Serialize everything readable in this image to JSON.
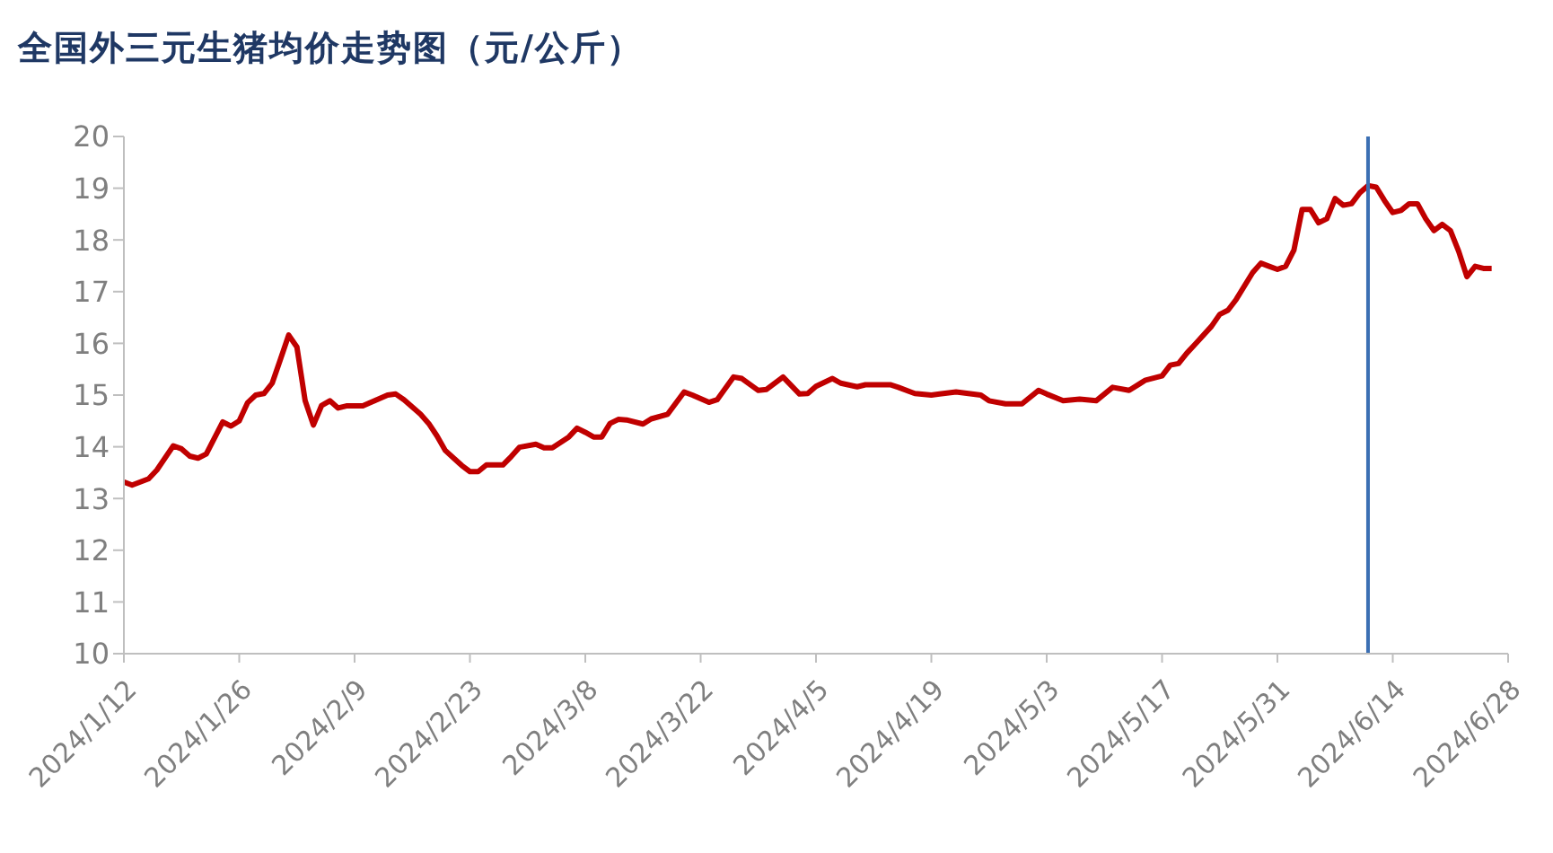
{
  "chart_data": {
    "type": "line",
    "title": "全国外三元生猪均价走势图（元/公斤）",
    "x": [
      "2024-01-12",
      "2024-01-13",
      "2024-01-15",
      "2024-01-16",
      "2024-01-18",
      "2024-01-19",
      "2024-01-20",
      "2024-01-21",
      "2024-01-22",
      "2024-01-24",
      "2024-01-25",
      "2024-01-26",
      "2024-01-27",
      "2024-01-28",
      "2024-01-29",
      "2024-01-30",
      "2024-01-31",
      "2024-02-01",
      "2024-02-02",
      "2024-02-03",
      "2024-02-04",
      "2024-02-05",
      "2024-02-06",
      "2024-02-07",
      "2024-02-08",
      "2024-02-10",
      "2024-02-11",
      "2024-02-13",
      "2024-02-14",
      "2024-02-15",
      "2024-02-17",
      "2024-02-18",
      "2024-02-19",
      "2024-02-20",
      "2024-02-22",
      "2024-02-23",
      "2024-02-24",
      "2024-02-25",
      "2024-02-27",
      "2024-02-28",
      "2024-02-29",
      "2024-03-02",
      "2024-03-03",
      "2024-03-04",
      "2024-03-06",
      "2024-03-07",
      "2024-03-08",
      "2024-03-09",
      "2024-03-10",
      "2024-03-11",
      "2024-03-12",
      "2024-03-13",
      "2024-03-15",
      "2024-03-16",
      "2024-03-18",
      "2024-03-20",
      "2024-03-21",
      "2024-03-23",
      "2024-03-24",
      "2024-03-26",
      "2024-03-27",
      "2024-03-29",
      "2024-03-30",
      "2024-04-01",
      "2024-04-03",
      "2024-04-04",
      "2024-04-05",
      "2024-04-07",
      "2024-04-08",
      "2024-04-10",
      "2024-04-11",
      "2024-04-14",
      "2024-04-15",
      "2024-04-17",
      "2024-04-19",
      "2024-04-20",
      "2024-04-22",
      "2024-04-25",
      "2024-04-26",
      "2024-04-28",
      "2024-04-30",
      "2024-05-02",
      "2024-05-03",
      "2024-05-05",
      "2024-05-07",
      "2024-05-09",
      "2024-05-11",
      "2024-05-13",
      "2024-05-15",
      "2024-05-17",
      "2024-05-18",
      "2024-05-19",
      "2024-05-20",
      "2024-05-21",
      "2024-05-23",
      "2024-05-24",
      "2024-05-25",
      "2024-05-26",
      "2024-05-28",
      "2024-05-29",
      "2024-05-30",
      "2024-05-31",
      "2024-06-01",
      "2024-06-02",
      "2024-06-03",
      "2024-06-04",
      "2024-06-05",
      "2024-06-06",
      "2024-06-07",
      "2024-06-08",
      "2024-06-09",
      "2024-06-10",
      "2024-06-11",
      "2024-06-12",
      "2024-06-13",
      "2024-06-14",
      "2024-06-15",
      "2024-06-16",
      "2024-06-17",
      "2024-06-18",
      "2024-06-19",
      "2024-06-20",
      "2024-06-21",
      "2024-06-22",
      "2024-06-23",
      "2024-06-24",
      "2024-06-25",
      "2024-06-26"
    ],
    "series": [
      {
        "color": "#c00000",
        "values": [
          13.32,
          13.26,
          13.38,
          13.55,
          14.02,
          13.96,
          13.82,
          13.78,
          13.86,
          14.48,
          14.4,
          14.5,
          14.85,
          15.0,
          15.03,
          15.23,
          15.69,
          16.16,
          15.93,
          14.89,
          14.42,
          14.8,
          14.89,
          14.75,
          14.79,
          14.79,
          14.86,
          15.0,
          15.02,
          14.91,
          14.63,
          14.45,
          14.21,
          13.93,
          13.64,
          13.52,
          13.52,
          13.65,
          13.65,
          13.81,
          13.99,
          14.05,
          13.98,
          13.98,
          14.19,
          14.36,
          14.28,
          14.19,
          14.19,
          14.45,
          14.53,
          14.52,
          14.44,
          14.54,
          14.63,
          15.06,
          15.0,
          14.86,
          14.91,
          15.35,
          15.32,
          15.09,
          15.11,
          15.35,
          15.02,
          15.03,
          15.17,
          15.32,
          15.23,
          15.16,
          15.2,
          15.2,
          15.15,
          15.03,
          15.0,
          15.02,
          15.06,
          15.0,
          14.89,
          14.83,
          14.83,
          15.09,
          15.02,
          14.89,
          14.92,
          14.89,
          15.15,
          15.09,
          15.29,
          15.37,
          15.58,
          15.61,
          15.81,
          15.98,
          16.33,
          16.56,
          16.64,
          16.85,
          17.37,
          17.55,
          17.49,
          17.43,
          17.49,
          17.8,
          18.59,
          18.59,
          18.33,
          18.41,
          18.8,
          18.67,
          18.7,
          18.91,
          19.05,
          19.02,
          18.76,
          18.53,
          18.57,
          18.7,
          18.7,
          18.41,
          18.18,
          18.3,
          18.18,
          17.78,
          17.29,
          17.49,
          17.45,
          17.45
        ]
      }
    ],
    "xlim": [
      "2024-01-12",
      "2024-06-28"
    ],
    "xticks": [
      {
        "value": "2024-01-12",
        "label": "2024/1/12"
      },
      {
        "value": "2024-01-26",
        "label": "2024/1/26"
      },
      {
        "value": "2024-02-09",
        "label": "2024/2/9"
      },
      {
        "value": "2024-02-23",
        "label": "2024/2/23"
      },
      {
        "value": "2024-03-08",
        "label": "2024/3/8"
      },
      {
        "value": "2024-03-22",
        "label": "2024/3/22"
      },
      {
        "value": "2024-04-05",
        "label": "2024/4/5"
      },
      {
        "value": "2024-04-19",
        "label": "2024/4/19"
      },
      {
        "value": "2024-05-03",
        "label": "2024/5/3"
      },
      {
        "value": "2024-05-17",
        "label": "2024/5/17"
      },
      {
        "value": "2024-05-31",
        "label": "2024/5/31"
      },
      {
        "value": "2024-06-14",
        "label": "2024/6/14"
      },
      {
        "value": "2024-06-28",
        "label": "2024/6/28"
      }
    ],
    "ylim": [
      10,
      20
    ],
    "yticks": [
      10,
      11,
      12,
      13,
      14,
      15,
      16,
      17,
      18,
      19,
      20
    ],
    "ref_lines": [
      {
        "axis": "x",
        "value": "2024-06-11",
        "color": "#3b6fb3"
      }
    ],
    "grid": false,
    "marker": "none",
    "line_style": "solid"
  }
}
